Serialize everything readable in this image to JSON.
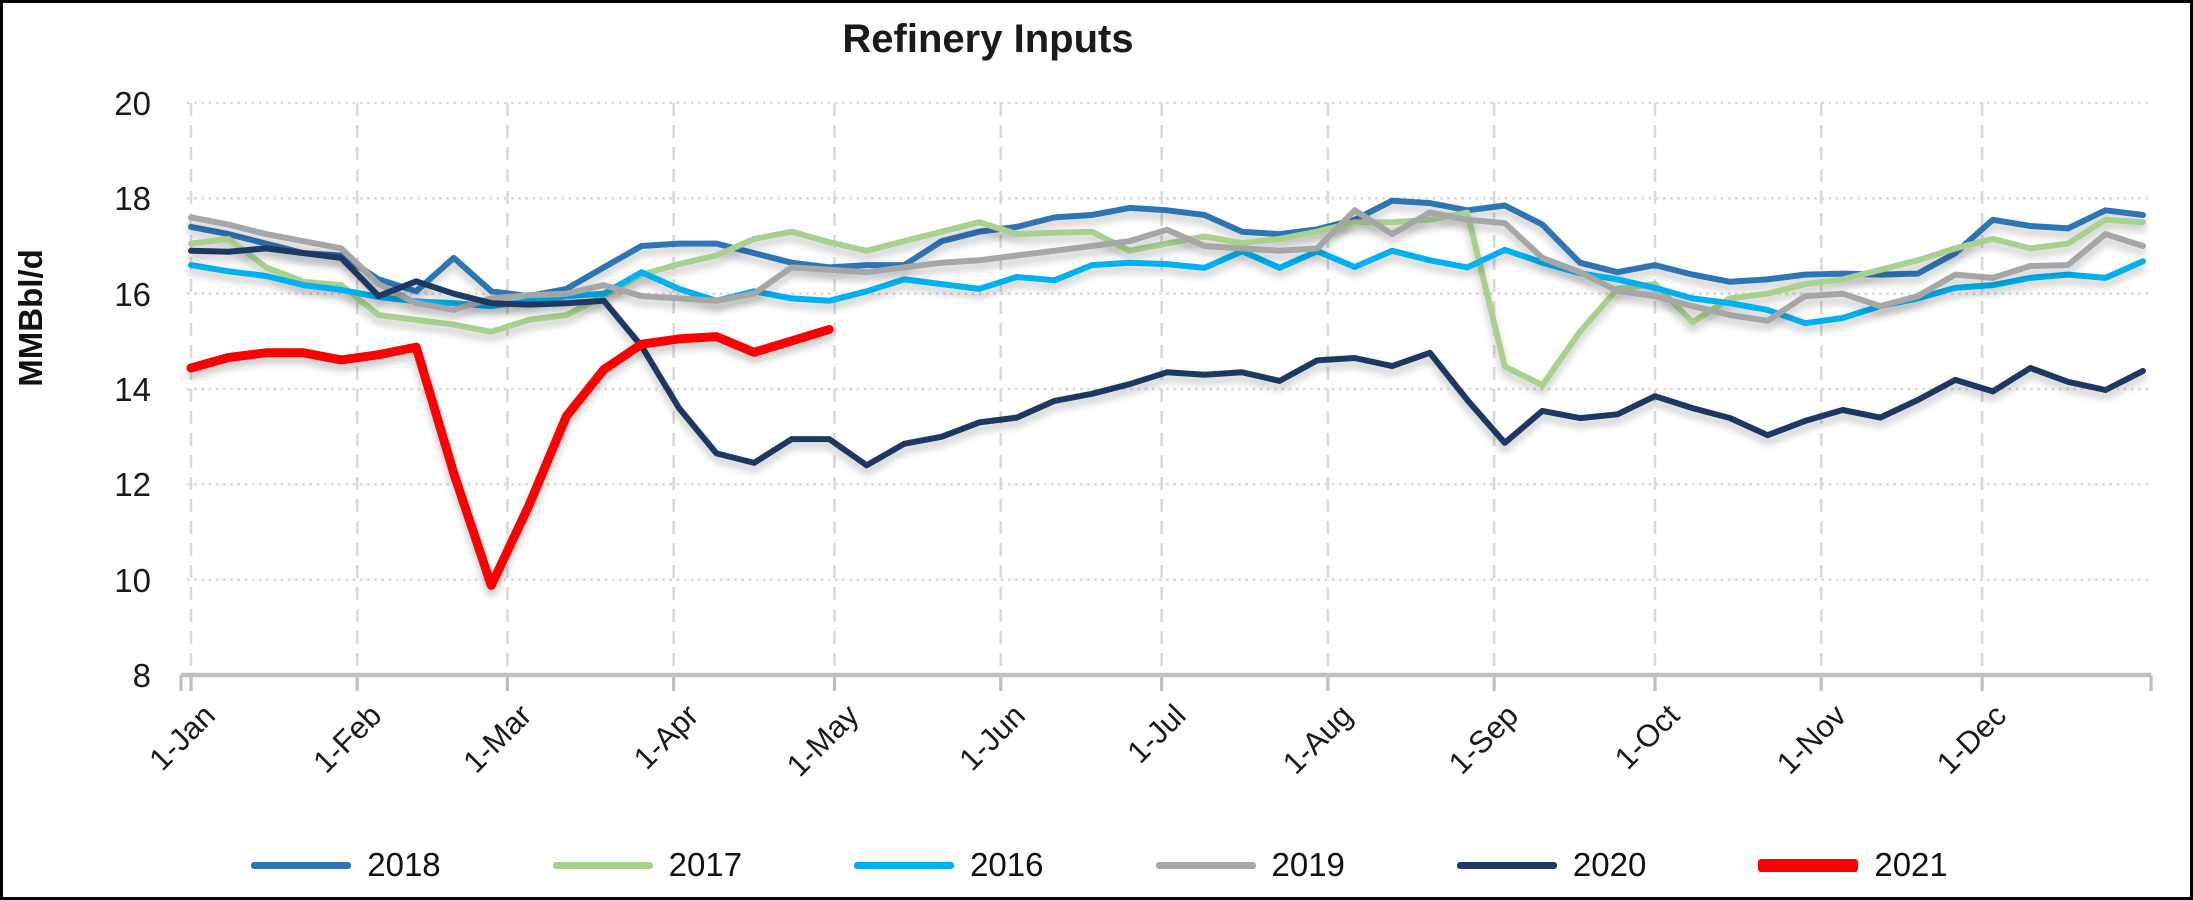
{
  "chart_data": {
    "type": "line",
    "title": "Refinery Inputs",
    "ylabel": "MMBbl/d",
    "xlabel": "",
    "ylim": [
      8,
      20
    ],
    "yticks": [
      8,
      10,
      12,
      14,
      16,
      18,
      20
    ],
    "grid": "both",
    "grid_color": "#D9D9D9",
    "axis_color": "#BFBFBF",
    "legend_position": "bottom",
    "x_axis": {
      "tick_labels": [
        "1-Jan",
        "1-Feb",
        "1-Mar",
        "1-Apr",
        "1-May",
        "1-Jun",
        "1-Jul",
        "1-Aug",
        "1-Sep",
        "1-Oct",
        "1-Nov",
        "1-Dec"
      ],
      "month_start_days": [
        0,
        31,
        59,
        90,
        120,
        151,
        181,
        212,
        243,
        273,
        304,
        334
      ],
      "total_days": 364,
      "frequency": "weekly"
    },
    "series": [
      {
        "name": "2018",
        "color": "#2E75B6",
        "stroke_width": 6,
        "values": [
          17.4,
          17.25,
          17.05,
          16.85,
          16.8,
          16.3,
          16.05,
          16.75,
          16.05,
          15.95,
          16.1,
          16.55,
          17.0,
          17.05,
          17.05,
          16.85,
          16.65,
          16.55,
          16.6,
          16.6,
          17.1,
          17.3,
          17.4,
          17.6,
          17.65,
          17.8,
          17.75,
          17.65,
          17.3,
          17.25,
          17.35,
          17.55,
          17.95,
          17.9,
          17.75,
          17.85,
          17.45,
          16.65,
          16.45,
          16.6,
          16.4,
          16.25,
          16.3,
          16.4,
          16.42,
          16.4,
          16.42,
          16.85,
          17.55,
          17.42,
          17.37,
          17.75,
          17.65
        ]
      },
      {
        "name": "2017",
        "color": "#A9D18E",
        "stroke_width": 6,
        "values": [
          17.05,
          17.15,
          16.55,
          16.25,
          16.18,
          15.55,
          15.45,
          15.35,
          15.2,
          15.45,
          15.55,
          15.95,
          16.4,
          16.62,
          16.8,
          17.15,
          17.3,
          17.08,
          16.9,
          17.1,
          17.3,
          17.5,
          17.25,
          17.28,
          17.3,
          16.9,
          17.05,
          17.2,
          17.06,
          17.15,
          17.3,
          17.5,
          17.5,
          17.55,
          17.7,
          14.47,
          14.08,
          15.2,
          16.1,
          16.2,
          15.4,
          15.9,
          16.0,
          16.2,
          16.3,
          16.5,
          16.7,
          16.95,
          17.15,
          16.95,
          17.05,
          17.55,
          17.5
        ]
      },
      {
        "name": "2016",
        "color": "#00B0F0",
        "stroke_width": 6,
        "values": [
          16.6,
          16.47,
          16.37,
          16.18,
          16.08,
          15.93,
          15.84,
          15.8,
          15.74,
          15.84,
          15.95,
          16.0,
          16.45,
          16.1,
          15.85,
          16.05,
          15.9,
          15.85,
          16.05,
          16.3,
          16.2,
          16.1,
          16.35,
          16.28,
          16.6,
          16.65,
          16.62,
          16.54,
          16.89,
          16.54,
          16.89,
          16.56,
          16.9,
          16.7,
          16.55,
          16.92,
          16.65,
          16.43,
          16.3,
          16.12,
          15.9,
          15.8,
          15.66,
          15.38,
          15.49,
          15.74,
          15.9,
          16.12,
          16.18,
          16.33,
          16.4,
          16.33,
          16.68
        ]
      },
      {
        "name": "2019",
        "color": "#A6A6A6",
        "stroke_width": 6,
        "values": [
          17.6,
          17.45,
          17.25,
          17.1,
          16.95,
          16.2,
          15.8,
          15.66,
          15.9,
          15.97,
          16.0,
          16.18,
          15.95,
          15.9,
          15.85,
          16.0,
          16.55,
          16.5,
          16.45,
          16.55,
          16.65,
          16.7,
          16.8,
          16.9,
          17.0,
          17.1,
          17.34,
          17.0,
          16.95,
          16.9,
          16.95,
          17.75,
          17.25,
          17.7,
          17.55,
          17.48,
          16.75,
          16.45,
          16.06,
          15.95,
          15.74,
          15.55,
          15.43,
          15.95,
          16.0,
          15.74,
          15.95,
          16.4,
          16.33,
          16.58,
          16.6,
          17.25,
          17.0
        ]
      },
      {
        "name": "2020",
        "color": "#1F3864",
        "stroke_width": 6,
        "values": [
          16.9,
          16.88,
          16.95,
          16.85,
          16.75,
          15.95,
          16.26,
          16.0,
          15.8,
          15.77,
          15.8,
          15.85,
          14.9,
          13.6,
          12.65,
          12.45,
          12.95,
          12.95,
          12.4,
          12.85,
          13.0,
          13.3,
          13.4,
          13.75,
          13.9,
          14.1,
          14.35,
          14.3,
          14.35,
          14.17,
          14.6,
          14.65,
          14.48,
          14.76,
          13.77,
          12.87,
          13.54,
          13.39,
          13.47,
          13.85,
          13.6,
          13.39,
          13.03,
          13.33,
          13.56,
          13.4,
          13.77,
          14.19,
          13.95,
          14.44,
          14.15,
          13.98,
          14.38
        ]
      },
      {
        "name": "2021",
        "color": "#FF0000",
        "stroke_width": 9,
        "values": [
          14.44,
          14.66,
          14.76,
          14.76,
          14.61,
          14.72,
          14.88,
          12.23,
          9.88,
          11.55,
          13.43,
          14.41,
          14.94,
          15.05,
          15.1,
          14.77,
          15.01,
          15.25
        ]
      }
    ]
  }
}
